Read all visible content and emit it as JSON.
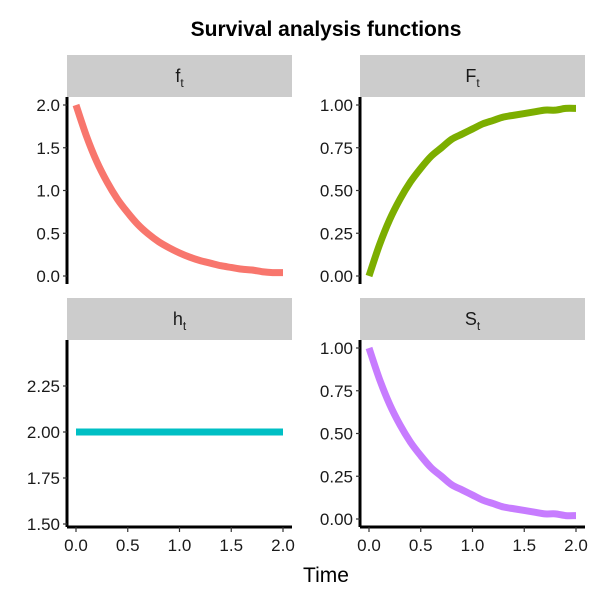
{
  "chart_data": {
    "type": "line",
    "title": "Survival analysis functions",
    "xlabel": "Time",
    "ylabel": "",
    "x_ticks": [
      "0.0",
      "0.5",
      "1.0",
      "1.5",
      "2.0"
    ],
    "xlim": [
      0,
      2
    ],
    "facets": [
      {
        "key": "f",
        "strip_main": "f",
        "strip_sub": "t",
        "color": "#F8766D",
        "ylim": [
          0,
          2.0
        ],
        "y_ticks": [
          0.0,
          0.5,
          1.0,
          1.5,
          2.0
        ],
        "y_tick_labels": [
          "0.0",
          "0.5",
          "1.0",
          "1.5",
          "2.0"
        ],
        "x": [
          0.0,
          0.1,
          0.2,
          0.3,
          0.4,
          0.5,
          0.6,
          0.7,
          0.8,
          0.9,
          1.0,
          1.1,
          1.2,
          1.3,
          1.4,
          1.5,
          1.6,
          1.7,
          1.8,
          1.9,
          2.0
        ],
        "values": [
          2.0,
          1.64,
          1.34,
          1.1,
          0.9,
          0.74,
          0.6,
          0.49,
          0.4,
          0.33,
          0.27,
          0.22,
          0.18,
          0.15,
          0.12,
          0.1,
          0.08,
          0.07,
          0.05,
          0.04,
          0.04
        ]
      },
      {
        "key": "F",
        "strip_main": "F",
        "strip_sub": "t",
        "color": "#7CAE00",
        "ylim": [
          0,
          1.0
        ],
        "y_ticks": [
          0.0,
          0.25,
          0.5,
          0.75,
          1.0
        ],
        "y_tick_labels": [
          "0.00",
          "0.25",
          "0.50",
          "0.75",
          "1.00"
        ],
        "x": [
          0.0,
          0.1,
          0.2,
          0.3,
          0.4,
          0.5,
          0.6,
          0.7,
          0.8,
          0.9,
          1.0,
          1.1,
          1.2,
          1.3,
          1.4,
          1.5,
          1.6,
          1.7,
          1.8,
          1.9,
          2.0
        ],
        "values": [
          0.0,
          0.18,
          0.33,
          0.45,
          0.55,
          0.63,
          0.7,
          0.75,
          0.8,
          0.83,
          0.86,
          0.89,
          0.91,
          0.93,
          0.94,
          0.95,
          0.96,
          0.97,
          0.97,
          0.98,
          0.98
        ]
      },
      {
        "key": "h",
        "strip_main": "h",
        "strip_sub": "t",
        "color": "#00BFC4",
        "ylim": [
          1.5,
          2.5
        ],
        "y_ticks": [
          1.5,
          1.75,
          2.0,
          2.25
        ],
        "y_tick_labels": [
          "1.50",
          "1.75",
          "2.00",
          "2.25"
        ],
        "x": [
          0.0,
          2.0
        ],
        "values": [
          2.0,
          2.0
        ]
      },
      {
        "key": "S",
        "strip_main": "S",
        "strip_sub": "t",
        "color": "#C77CFF",
        "ylim": [
          0,
          1.0
        ],
        "y_ticks": [
          0.0,
          0.25,
          0.5,
          0.75,
          1.0
        ],
        "y_tick_labels": [
          "0.00",
          "0.25",
          "0.50",
          "0.75",
          "1.00"
        ],
        "x": [
          0.0,
          0.1,
          0.2,
          0.3,
          0.4,
          0.5,
          0.6,
          0.7,
          0.8,
          0.9,
          1.0,
          1.1,
          1.2,
          1.3,
          1.4,
          1.5,
          1.6,
          1.7,
          1.8,
          1.9,
          2.0
        ],
        "values": [
          1.0,
          0.82,
          0.67,
          0.55,
          0.45,
          0.37,
          0.3,
          0.25,
          0.2,
          0.17,
          0.14,
          0.11,
          0.09,
          0.07,
          0.06,
          0.05,
          0.04,
          0.03,
          0.03,
          0.02,
          0.02
        ]
      }
    ],
    "grid": false,
    "legend": "none"
  }
}
